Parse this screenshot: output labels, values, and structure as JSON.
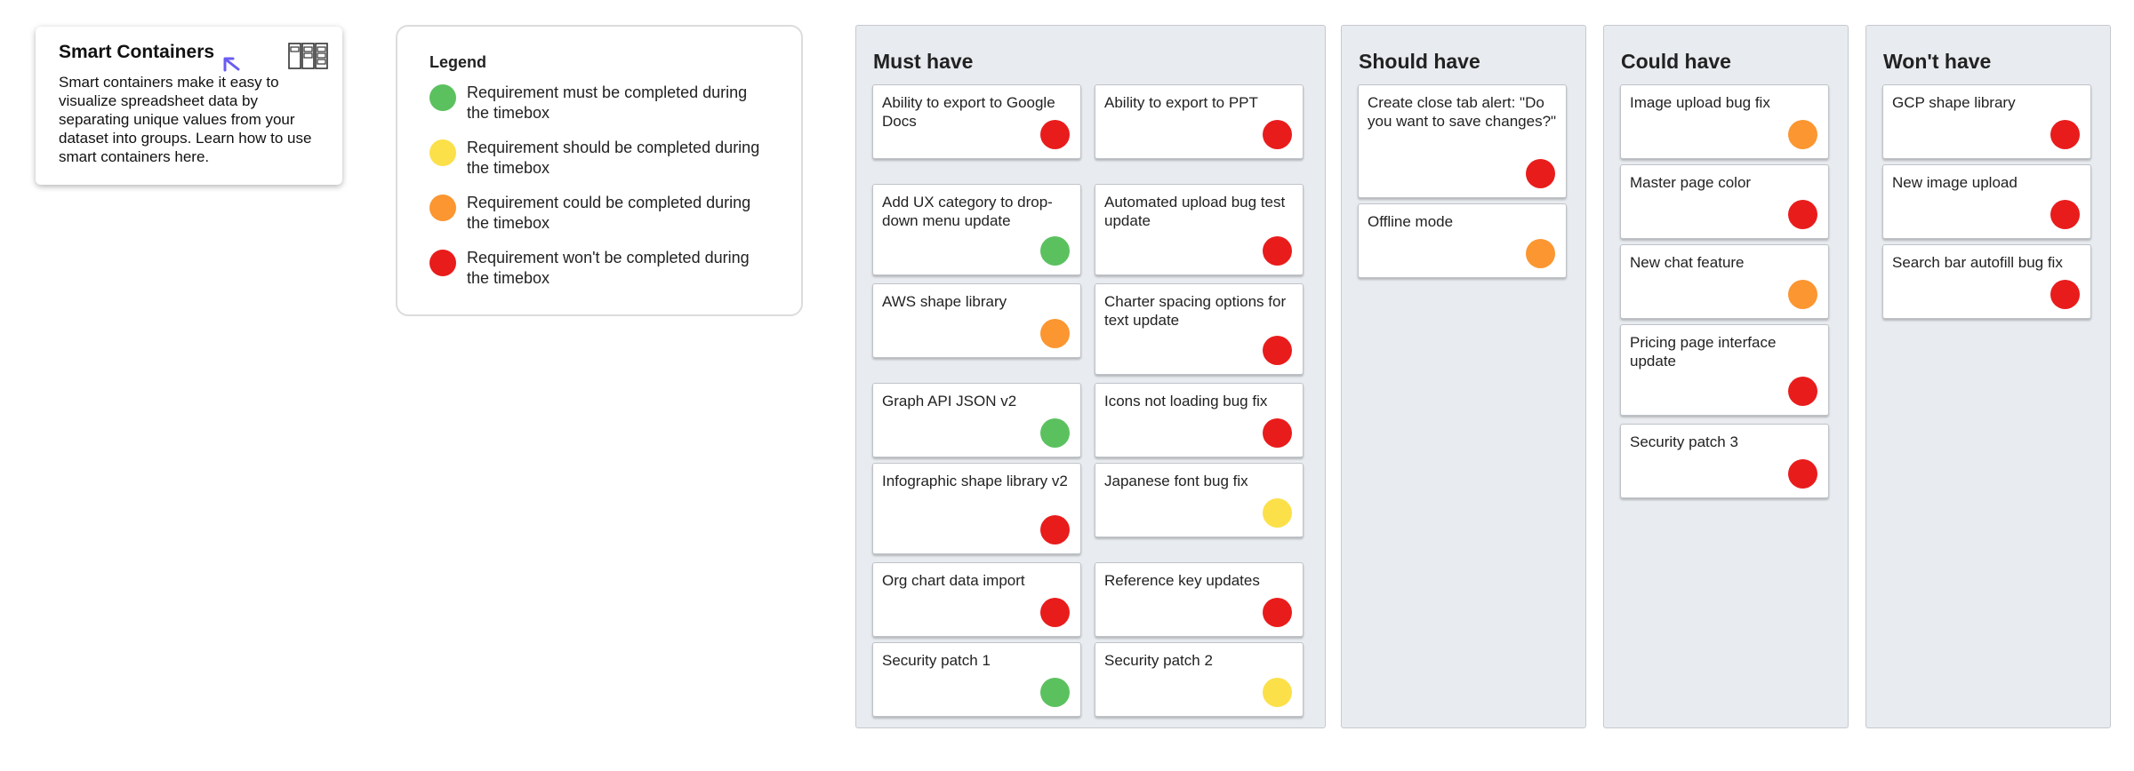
{
  "info": {
    "title": "Smart Containers",
    "text": "Smart containers make it easy to visualize spreadsheet data by separating unique values from your dataset into groups. Learn how to use smart containers here."
  },
  "legend": {
    "title": "Legend",
    "items": [
      {
        "color": "#5bc15f",
        "text": "Requirement must be completed during the timebox"
      },
      {
        "color": "#fbe04a",
        "text": "Requirement should be completed during the timebox"
      },
      {
        "color": "#fb9631",
        "text": "Requirement could be completed during the timebox"
      },
      {
        "color": "#e91c1c",
        "text": "Requirement won't be completed during the timebox"
      }
    ]
  },
  "lanes": {
    "must": {
      "title": "Must have"
    },
    "should": {
      "title": "Should have"
    },
    "could": {
      "title": "Could have"
    },
    "wont": {
      "title": "Won't have"
    }
  },
  "cards": {
    "must": [
      {
        "text": "Ability to export to Google Docs",
        "color": "#e91c1c"
      },
      {
        "text": "Ability to export to PPT",
        "color": "#e91c1c"
      },
      {
        "text": "Add UX category to drop-down menu  update",
        "color": "#5bc15f"
      },
      {
        "text": "Automated upload bug test update",
        "color": "#e91c1c"
      },
      {
        "text": "AWS shape library",
        "color": "#fb9631"
      },
      {
        "text": "Charter spacing options for text update",
        "color": "#e91c1c"
      },
      {
        "text": "Graph API JSON v2",
        "color": "#5bc15f"
      },
      {
        "text": "Icons not loading bug fix",
        "color": "#e91c1c"
      },
      {
        "text": "Infographic shape library v2",
        "color": "#e91c1c"
      },
      {
        "text": "Japanese font bug fix",
        "color": "#fbe04a"
      },
      {
        "text": "Org chart data import",
        "color": "#e91c1c"
      },
      {
        "text": "Reference key updates",
        "color": "#e91c1c"
      },
      {
        "text": "Security patch 1",
        "color": "#5bc15f"
      },
      {
        "text": "Security patch 2",
        "color": "#fbe04a"
      }
    ],
    "should": [
      {
        "text": "Create close tab alert: \"Do you want to save changes?\"",
        "color": "#e91c1c"
      },
      {
        "text": "Offline mode",
        "color": "#fb9631"
      }
    ],
    "could": [
      {
        "text": "Image upload bug fix",
        "color": "#fb9631"
      },
      {
        "text": "Master page color",
        "color": "#e91c1c"
      },
      {
        "text": "New chat feature",
        "color": "#fb9631"
      },
      {
        "text": "Pricing page interface update",
        "color": "#e91c1c"
      },
      {
        "text": "Security patch 3",
        "color": "#e91c1c"
      }
    ],
    "wont": [
      {
        "text": "GCP shape library",
        "color": "#e91c1c"
      },
      {
        "text": "New image upload",
        "color": "#e91c1c"
      },
      {
        "text": "Search bar autofill bug fix",
        "color": "#e91c1c"
      }
    ]
  }
}
